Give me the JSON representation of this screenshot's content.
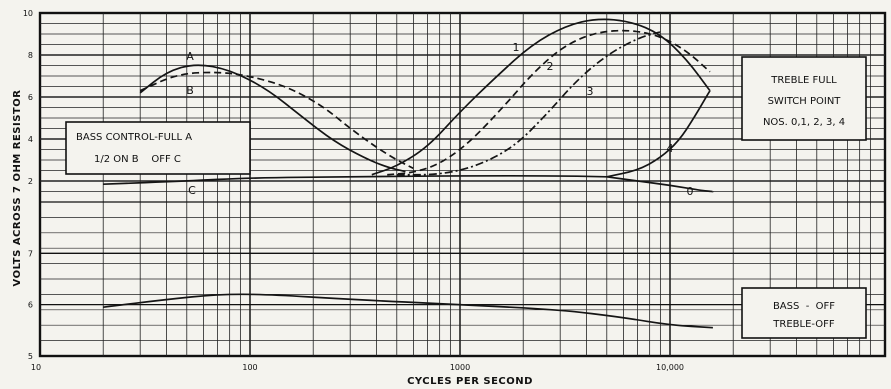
{
  "chart_data": {
    "type": "line",
    "title": "",
    "xlabel": "CYCLES PER SECOND",
    "ylabel": "VOLTS ACROSS 7 OHM RESISTOR",
    "x_scale": "log",
    "xlim": [
      10,
      20000
    ],
    "x_ticks": [
      {
        "value": 10,
        "label": "10"
      },
      {
        "value": 100,
        "label": "100"
      },
      {
        "value": 1000,
        "label": "1000"
      },
      {
        "value": 10000,
        "label": "10,000"
      }
    ],
    "grid": true,
    "upper_panel": {
      "ylim": [
        1,
        10
      ],
      "y_ticks": [
        {
          "value": 10,
          "label": "10"
        },
        {
          "value": 8,
          "label": "8"
        },
        {
          "value": 6,
          "label": "6"
        },
        {
          "value": 4,
          "label": "4"
        },
        {
          "value": 2,
          "label": "2"
        }
      ],
      "series": [
        {
          "name": "A",
          "style": "solid",
          "points": [
            [
              30,
              6.2
            ],
            [
              40,
              7.2
            ],
            [
              55,
              7.6
            ],
            [
              80,
              7.3
            ],
            [
              120,
              6.4
            ],
            [
              180,
              5.0
            ],
            [
              250,
              3.9
            ],
            [
              350,
              3.1
            ],
            [
              450,
              2.65
            ],
            [
              550,
              2.45
            ]
          ]
        },
        {
          "name": "B",
          "style": "dashed",
          "points": [
            [
              30,
              6.3
            ],
            [
              45,
              7.1
            ],
            [
              70,
              7.2
            ],
            [
              100,
              7.0
            ],
            [
              150,
              6.5
            ],
            [
              220,
              5.6
            ],
            [
              300,
              4.5
            ],
            [
              400,
              3.6
            ],
            [
              500,
              3.0
            ],
            [
              600,
              2.6
            ]
          ]
        },
        {
          "name": "C",
          "style": "solid",
          "points": [
            [
              20,
              1.85
            ],
            [
              50,
              2.0
            ],
            [
              100,
              2.15
            ],
            [
              300,
              2.2
            ],
            [
              1000,
              2.25
            ],
            [
              3000,
              2.25
            ],
            [
              5000,
              2.2
            ]
          ]
        },
        {
          "name": "0",
          "style": "solid",
          "points": [
            [
              5000,
              2.2
            ],
            [
              7000,
              2.0
            ],
            [
              10000,
              1.8
            ],
            [
              14000,
              1.55
            ],
            [
              16000,
              1.5
            ]
          ]
        },
        {
          "name": "1",
          "style": "solid",
          "points": [
            [
              380,
              2.3
            ],
            [
              500,
              2.7
            ],
            [
              700,
              3.6
            ],
            [
              1000,
              5.3
            ],
            [
              1500,
              7.0
            ],
            [
              2200,
              8.5
            ],
            [
              3200,
              9.4
            ],
            [
              4500,
              9.75
            ],
            [
              6500,
              9.6
            ],
            [
              9000,
              9.0
            ],
            [
              12000,
              7.8
            ],
            [
              15500,
              6.3
            ]
          ]
        },
        {
          "name": "2",
          "style": "dashed",
          "points": [
            [
              450,
              2.3
            ],
            [
              600,
              2.4
            ],
            [
              800,
              2.8
            ],
            [
              1100,
              3.8
            ],
            [
              1600,
              5.5
            ],
            [
              2300,
              7.3
            ],
            [
              3200,
              8.5
            ],
            [
              4500,
              9.1
            ],
            [
              6500,
              9.2
            ],
            [
              9000,
              8.9
            ],
            [
              12000,
              8.2
            ],
            [
              15500,
              7.2
            ]
          ]
        },
        {
          "name": "3",
          "style": "dashdot",
          "points": [
            [
              500,
              2.3
            ],
            [
              800,
              2.3
            ],
            [
              1200,
              2.7
            ],
            [
              1800,
              3.6
            ],
            [
              2600,
              5.2
            ],
            [
              3600,
              6.8
            ],
            [
              5000,
              8.0
            ],
            [
              7000,
              8.8
            ],
            [
              9000,
              9.1
            ]
          ]
        },
        {
          "name": "4",
          "style": "solid",
          "points": [
            [
              5000,
              2.2
            ],
            [
              7000,
              2.5
            ],
            [
              9000,
              3.1
            ],
            [
              11000,
              3.9
            ],
            [
              13000,
              5.0
            ],
            [
              15500,
              6.3
            ]
          ]
        }
      ]
    },
    "lower_panel": {
      "y_ticks": [
        {
          "value": 7,
          "label": "7"
        },
        {
          "value": 6,
          "label": "6"
        },
        {
          "value": 5,
          "label": "5"
        }
      ],
      "series": [
        {
          "name": "BASS - OFF TREBLE-OFF",
          "style": "solid",
          "points": [
            [
              20,
              5.95
            ],
            [
              40,
              6.1
            ],
            [
              70,
              6.2
            ],
            [
              120,
              6.2
            ],
            [
              300,
              6.1
            ],
            [
              1000,
              6.0
            ],
            [
              3000,
              5.9
            ],
            [
              6000,
              5.75
            ],
            [
              10000,
              5.6
            ],
            [
              16000,
              5.55
            ]
          ]
        }
      ]
    },
    "annotations": {
      "bass_box": [
        "BASS CONTROL-FULL A",
        "1/2 ON B    OFF C"
      ],
      "treble_box": [
        "TREBLE FULL",
        "SWITCH POINT",
        "NOS. 0,1, 2, 3, 4"
      ],
      "off_box": [
        "BASS  -  OFF",
        "TREBLE-OFF"
      ]
    },
    "curve_labels": [
      "A",
      "B",
      "C",
      "0",
      "1",
      "2",
      "3",
      "4"
    ]
  }
}
